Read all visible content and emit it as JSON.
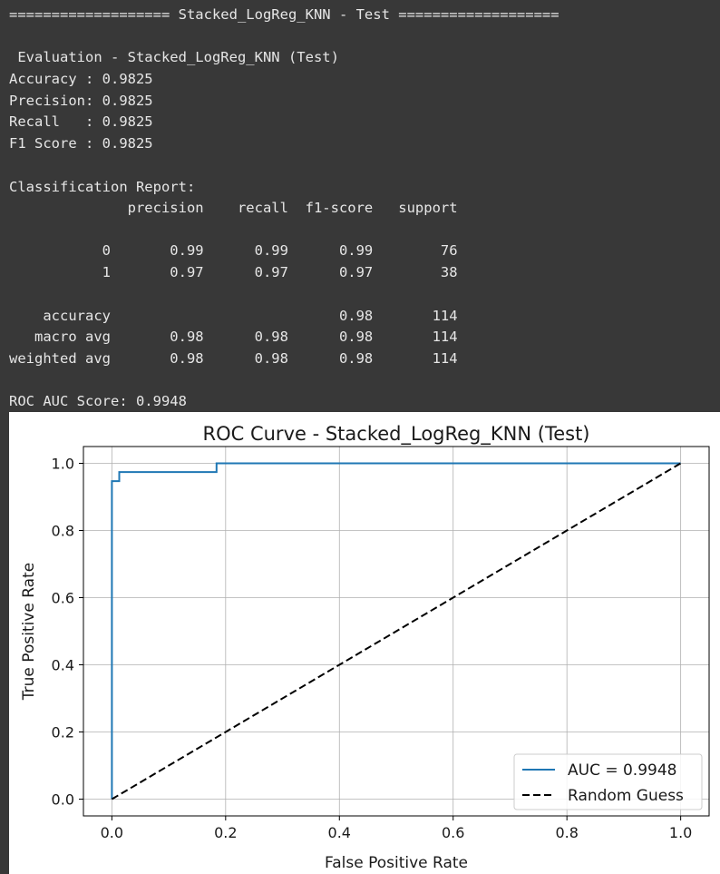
{
  "output": {
    "banner": "=================== Stacked_LogReg_KNN - Test ===================",
    "eval_title": " Evaluation - Stacked_LogReg_KNN (Test)",
    "metrics": [
      "Accuracy : 0.9825",
      "Precision: 0.9825",
      "Recall   : 0.9825",
      "F1 Score : 0.9825"
    ],
    "report_title": "Classification Report:",
    "report_lines": [
      "              precision    recall  f1-score   support",
      "",
      "           0       0.99      0.99      0.99        76",
      "           1       0.97      0.97      0.97        38",
      "",
      "    accuracy                           0.98       114",
      "   macro avg       0.98      0.98      0.98       114",
      "weighted avg       0.98      0.98      0.98       114"
    ],
    "roc_auc": "ROC AUC Score: 0.9948"
  },
  "chart_data": {
    "type": "line",
    "title": "ROC Curve - Stacked_LogReg_KNN (Test)",
    "xlabel": "False Positive Rate",
    "ylabel": "True Positive Rate",
    "xlim": [
      -0.05,
      1.05
    ],
    "ylim": [
      -0.05,
      1.05
    ],
    "xticks": [
      "0.0",
      "0.2",
      "0.4",
      "0.6",
      "0.8",
      "1.0"
    ],
    "yticks": [
      "0.0",
      "0.2",
      "0.4",
      "0.6",
      "0.8",
      "1.0"
    ],
    "grid": true,
    "legend_position": "lower-right",
    "series": [
      {
        "name": "AUC = 0.9948",
        "color": "#1f77b4",
        "style": "solid",
        "x": [
          0.0,
          0.0,
          0.0,
          0.013,
          0.013,
          0.184,
          0.184,
          1.0
        ],
        "y": [
          0.0,
          0.947,
          0.947,
          0.947,
          0.974,
          0.974,
          1.0,
          1.0
        ]
      },
      {
        "name": "Random Guess",
        "color": "#000000",
        "style": "dashed",
        "x": [
          0.0,
          1.0
        ],
        "y": [
          0.0,
          1.0
        ]
      }
    ]
  }
}
